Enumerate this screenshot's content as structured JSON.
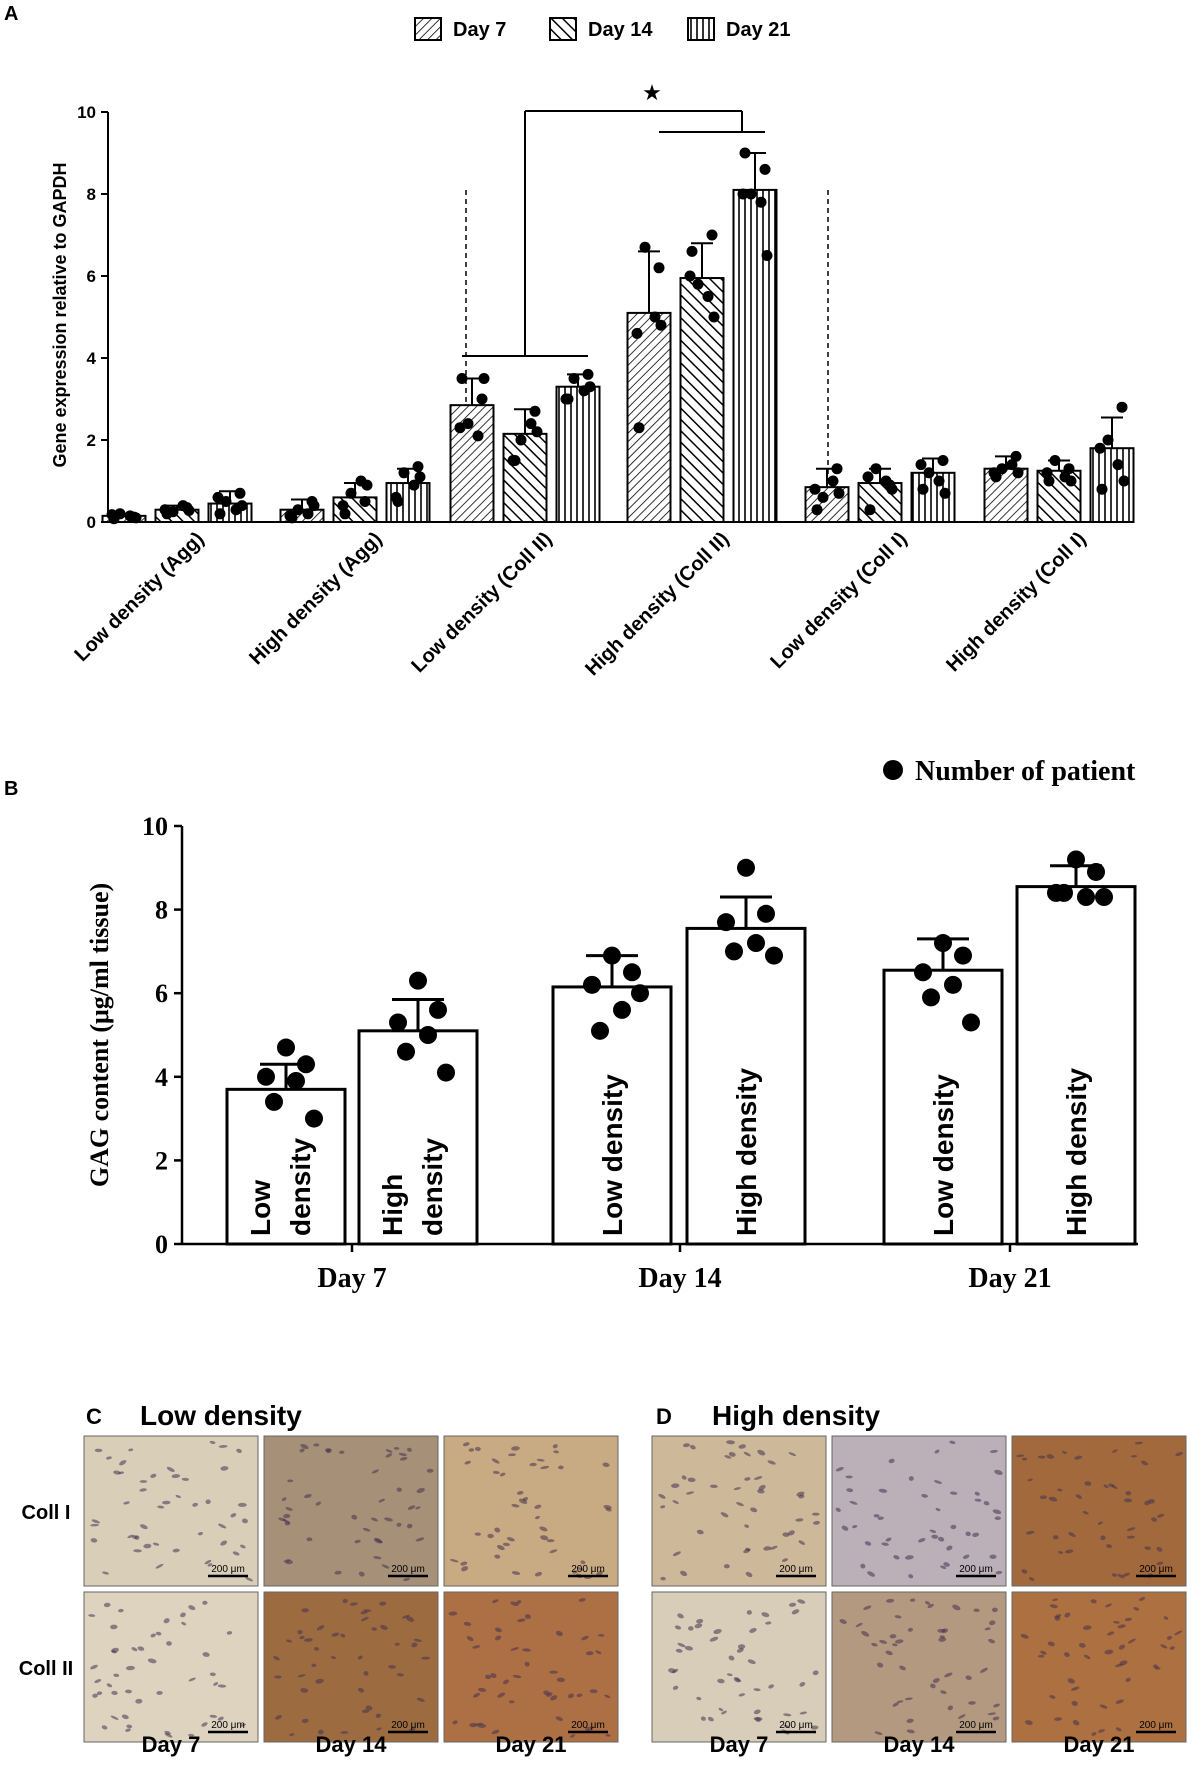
{
  "panels": {
    "A": "A",
    "B": "B",
    "C": "C",
    "D": "D"
  },
  "chart_data": [
    {
      "type": "bar",
      "panel": "A",
      "ylabel": "Gene expression relative to GAPDH",
      "ylim": [
        0,
        10
      ],
      "yticks": [
        0,
        2,
        4,
        6,
        8,
        10
      ],
      "legend": [
        "Day 7",
        "Day 14",
        "Day 21"
      ],
      "legend_position": "top-center",
      "categories": [
        "Low density (Agg)",
        "High density (Agg)",
        "Low density (Coll II)",
        "High density (Coll II)",
        "Low density (Coll I)",
        "High density (Coll I)"
      ],
      "series": [
        {
          "name": "Day 7",
          "values": [
            0.15,
            0.3,
            2.85,
            5.1,
            0.85,
            1.3
          ],
          "errors": [
            0.05,
            0.25,
            0.65,
            1.5,
            0.45,
            0.3
          ]
        },
        {
          "name": "Day 14",
          "values": [
            0.3,
            0.6,
            2.15,
            5.95,
            0.95,
            1.25
          ],
          "errors": [
            0.1,
            0.35,
            0.6,
            0.85,
            0.35,
            0.25
          ]
        },
        {
          "name": "Day 21",
          "values": [
            0.45,
            0.95,
            3.3,
            8.1,
            1.2,
            1.8
          ],
          "errors": [
            0.3,
            0.35,
            0.3,
            0.9,
            0.35,
            0.75
          ]
        }
      ],
      "points": [
        [
          [
            0.08,
            0.12,
            0.2,
            0.15,
            0.18,
            0.1
          ],
          [
            0.2,
            0.35,
            0.25,
            0.4,
            0.3,
            0.28
          ],
          [
            0.2,
            0.7,
            0.5,
            0.3,
            0.6,
            0.4
          ]
        ],
        [
          [
            0.1,
            0.5,
            0.3,
            0.2,
            0.15,
            0.4
          ],
          [
            0.2,
            0.5,
            0.7,
            1.0,
            0.4,
            0.9
          ],
          [
            0.5,
            1.35,
            1.2,
            0.9,
            0.6,
            1.1
          ]
        ],
        [
          [
            3.5,
            3.0,
            2.4,
            2.1,
            2.3,
            3.5
          ],
          [
            1.5,
            2.7,
            2.0,
            2.4,
            1.5,
            2.2
          ],
          [
            3.0,
            3.6,
            3.5,
            3.2,
            3.0,
            3.3
          ]
        ],
        [
          [
            2.3,
            6.2,
            6.7,
            5.0,
            4.6,
            4.8
          ],
          [
            6.6,
            7.0,
            5.8,
            5.5,
            6.0,
            5.0
          ],
          [
            9.0,
            8.6,
            8.0,
            7.8,
            8.0,
            6.5
          ]
        ],
        [
          [
            0.3,
            1.3,
            0.6,
            1.0,
            0.8,
            0.7
          ],
          [
            0.3,
            0.9,
            1.3,
            1.0,
            1.1,
            0.8
          ],
          [
            0.8,
            1.5,
            1.2,
            1.0,
            1.4,
            0.7
          ]
        ],
        [
          [
            1.1,
            1.6,
            1.3,
            1.4,
            1.2,
            1.2
          ],
          [
            1.0,
            1.3,
            1.5,
            1.1,
            1.2,
            1.0
          ],
          [
            0.8,
            2.8,
            2.0,
            1.4,
            1.8,
            1.0
          ]
        ]
      ],
      "significance": "★",
      "significance_comparison": "Low density (Coll II) vs High density (Coll II)"
    },
    {
      "type": "bar",
      "panel": "B",
      "ylabel": "GAG content (μg/ml tissue)",
      "ylim": [
        0,
        10
      ],
      "yticks": [
        0,
        2,
        4,
        6,
        8,
        10
      ],
      "legend": [
        "Number of patient"
      ],
      "legend_position": "top-right",
      "groups": [
        "Day 7",
        "Day 14",
        "Day 21"
      ],
      "bar_labels": [
        "Low\ndensity",
        "High\ndensity",
        "Low density",
        "High density",
        "Low density",
        "High density"
      ],
      "values": [
        3.7,
        5.1,
        6.15,
        7.55,
        6.55,
        8.55
      ],
      "errors": [
        0.6,
        0.75,
        0.75,
        0.75,
        0.75,
        0.5
      ],
      "points": [
        [
          4.7,
          4.3,
          4.0,
          3.9,
          3.4,
          3.0
        ],
        [
          6.3,
          5.6,
          5.3,
          5.0,
          4.6,
          4.1
        ],
        [
          6.9,
          6.5,
          6.2,
          5.6,
          5.1,
          6.0
        ],
        [
          9.0,
          7.9,
          7.7,
          7.2,
          7.0,
          6.9
        ],
        [
          7.2,
          6.9,
          6.5,
          6.2,
          5.9,
          5.3
        ],
        [
          9.2,
          8.9,
          8.4,
          8.3,
          8.4,
          8.3
        ]
      ]
    }
  ],
  "micro": {
    "C": {
      "title": "Low density",
      "rows": [
        "Coll I",
        "Coll II"
      ],
      "cols": [
        "Day 7",
        "Day 14",
        "Day 21"
      ],
      "scale": "200 μm",
      "tones": [
        [
          "#d9ceb8",
          "#a69078",
          "#c9ab83"
        ],
        [
          "#ddd3bf",
          "#9c6c40",
          "#ad7044"
        ]
      ]
    },
    "D": {
      "title": "High density",
      "rows": [
        "Coll I",
        "Coll II"
      ],
      "cols": [
        "Day 7",
        "Day 14",
        "Day 21"
      ],
      "scale": "200 μm",
      "tones": [
        [
          "#cdb99a",
          "#bbb0b8",
          "#a26a3c"
        ],
        [
          "#d8cdb8",
          "#b3997f",
          "#ad7040"
        ]
      ]
    }
  }
}
